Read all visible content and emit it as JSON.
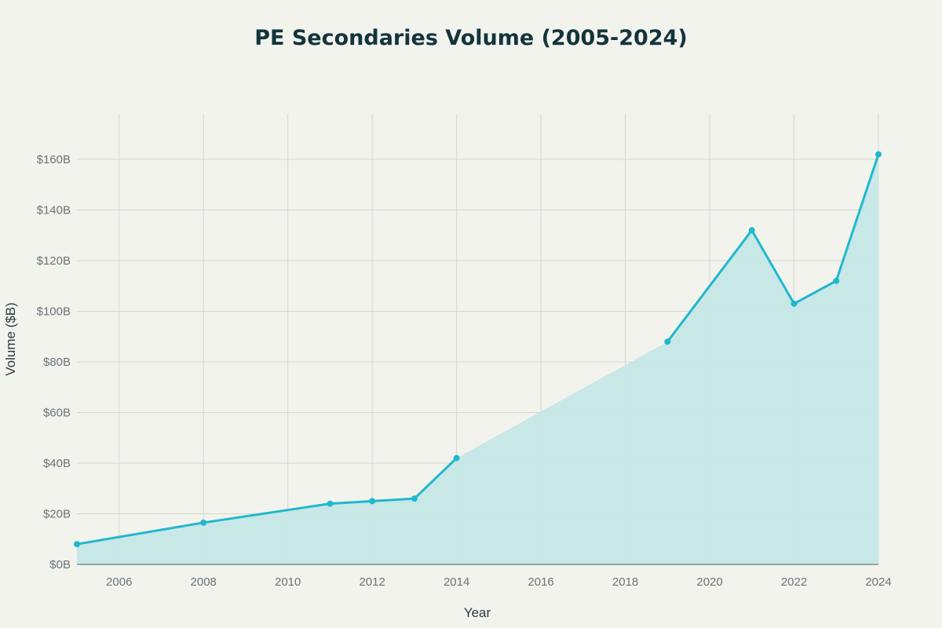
{
  "chart_data": {
    "type": "area",
    "title": "PE Secondaries Volume (2005-2024)",
    "xlabel": "Year",
    "ylabel": "Volume ($B)",
    "xlim": [
      2005,
      2024
    ],
    "ylim": [
      0,
      178
    ],
    "x_ticks": [
      2006,
      2008,
      2010,
      2012,
      2014,
      2016,
      2018,
      2020,
      2022,
      2024
    ],
    "y_ticks": [
      0,
      20,
      40,
      60,
      80,
      100,
      120,
      140,
      160
    ],
    "y_tick_labels": [
      "$0B",
      "$20B",
      "$40B",
      "$60B",
      "$80B",
      "$100B",
      "$120B",
      "$140B",
      "$160B"
    ],
    "grid": true,
    "legend": "none",
    "colors": {
      "line": "#1fb8cd",
      "fill": "#c5e7e6",
      "grid": "#d5d6d2",
      "background": "#f3f3ee"
    },
    "series": [
      {
        "x": [
          2005,
          2008,
          2011,
          2012,
          2013,
          2014,
          2019,
          2021,
          2022,
          2023,
          2024
        ],
        "values": [
          8,
          16.5,
          24,
          25,
          26,
          42,
          88,
          132,
          103,
          112,
          162
        ],
        "line_breaks_after": [
          2014
        ]
      }
    ]
  }
}
